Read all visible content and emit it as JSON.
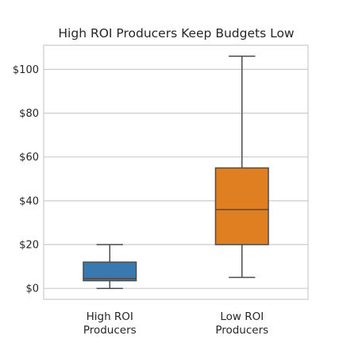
{
  "chart_data": {
    "type": "box",
    "title": "High ROI Producers Keep Budgets Low",
    "xlabel": "",
    "ylabel": "",
    "ylim": [
      -5,
      111
    ],
    "yticks": [
      0,
      20,
      40,
      60,
      80,
      100
    ],
    "ytick_labels": [
      "$0",
      "$20",
      "$40",
      "$60",
      "$80",
      "$100"
    ],
    "grid": true,
    "categories": [
      {
        "label_lines": [
          "High ROI",
          "Producers"
        ],
        "min": 0,
        "q1": 3.5,
        "median": 4.5,
        "q3": 12,
        "max": 20,
        "color": "#3a78b0"
      },
      {
        "label_lines": [
          "Low ROI",
          "Producers"
        ],
        "min": 5,
        "q1": 20,
        "median": 36,
        "q3": 55,
        "max": 106,
        "color": "#e07e22"
      }
    ],
    "colors": {
      "grid": "#cccccc",
      "frame": "#cccccc",
      "box_edge": "#4d4d4d"
    }
  }
}
